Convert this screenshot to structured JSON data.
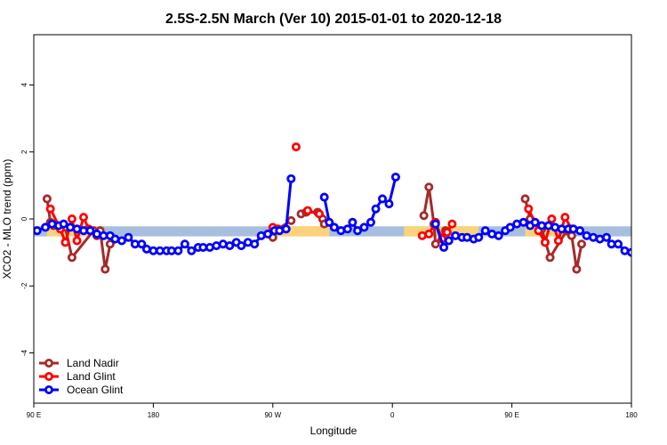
{
  "chart_data": {
    "type": "line",
    "title": "2.5S-2.5N March (Ver 10)   2015-01-01 to 2020-12-18",
    "xlabel": "Longitude",
    "ylabel": "XCO2 - MLO trend (ppm)",
    "xlim": [
      0,
      360
    ],
    "ylim": [
      -5.5,
      5.5
    ],
    "x_ticks": [
      {
        "value": 0,
        "label": "90 E"
      },
      {
        "value": 72,
        "label": "180"
      },
      {
        "value": 144,
        "label": "90 W"
      },
      {
        "value": 216,
        "label": "0"
      },
      {
        "value": 288,
        "label": "90 E"
      },
      {
        "value": 360,
        "label": "180"
      }
    ],
    "y_ticks": [
      {
        "value": -4,
        "label": "-4"
      },
      {
        "value": -2,
        "label": "-2"
      },
      {
        "value": 0,
        "label": "0"
      },
      {
        "value": 2,
        "label": "2"
      },
      {
        "value": 4,
        "label": "4"
      }
    ],
    "band": {
      "y_low": -0.52,
      "y_high": -0.22,
      "color": "#a8bedf",
      "land_color": "#fdd27a",
      "land_segments": [
        [
          8,
          38
        ],
        [
          144,
          178
        ],
        [
          223,
          268
        ],
        [
          296,
          324
        ]
      ]
    },
    "series": [
      {
        "name": "Land Nadir",
        "color": "#a52a2a",
        "segments": [
          [
            [
              8,
              0.6
            ],
            [
              10,
              -0.1
            ],
            [
              12,
              -0.2
            ],
            [
              19,
              -0.25
            ],
            [
              23,
              -1.15
            ],
            [
              36,
              -0.35
            ],
            [
              38,
              -0.5
            ],
            [
              40,
              -0.35
            ],
            [
              43,
              -1.5
            ],
            [
              46,
              -0.75
            ]
          ],
          [
            [
              144,
              -0.55
            ],
            [
              147,
              -0.3
            ],
            [
              155,
              -0.05
            ]
          ],
          [
            [
              161,
              0.15
            ],
            [
              164,
              0.2
            ],
            [
              171,
              0.2
            ],
            [
              174,
              0.0
            ],
            [
              175,
              -0.15
            ]
          ],
          [
            [
              235,
              0.1
            ],
            [
              238,
              0.95
            ],
            [
              241,
              -0.15
            ],
            [
              242,
              -0.75
            ],
            [
              248,
              -0.35
            ]
          ],
          [
            [
              296,
              0.6
            ],
            [
              299,
              0.0
            ],
            [
              306,
              -0.3
            ],
            [
              311,
              -1.15
            ],
            [
              321,
              -0.35
            ],
            [
              323,
              -0.4
            ],
            [
              324,
              -0.5
            ],
            [
              327,
              -1.5
            ],
            [
              330,
              -0.75
            ]
          ]
        ]
      },
      {
        "name": "Land Glint",
        "color": "#ff0000",
        "segments": [
          [
            [
              10,
              0.3
            ],
            [
              16,
              -0.3
            ],
            [
              19,
              -0.7
            ],
            [
              23,
              0.0
            ],
            [
              26,
              -0.65
            ],
            [
              30,
              0.05
            ],
            [
              33,
              -0.3
            ]
          ],
          [
            [
              144,
              -0.25
            ],
            [
              147,
              -0.3
            ]
          ],
          [
            [
              158,
              2.15
            ]
          ],
          [
            [
              165,
              0.25
            ],
            [
              172,
              0.15
            ]
          ],
          [
            [
              234,
              -0.5
            ],
            [
              238,
              -0.45
            ],
            [
              242,
              -0.1
            ],
            [
              246,
              -0.6
            ],
            [
              249,
              -0.4
            ],
            [
              252,
              -0.15
            ]
          ],
          [
            [
              298,
              0.3
            ],
            [
              304,
              -0.35
            ],
            [
              308,
              -0.7
            ],
            [
              312,
              0.0
            ],
            [
              316,
              -0.65
            ],
            [
              320,
              0.05
            ],
            [
              324,
              -0.3
            ]
          ]
        ]
      },
      {
        "name": "Ocean Glint",
        "color": "#0000ff",
        "segments": [
          [
            [
              2,
              -0.35
            ],
            [
              7,
              -0.25
            ],
            [
              11,
              -0.15
            ],
            [
              15,
              -0.2
            ],
            [
              18,
              -0.15
            ],
            [
              22,
              -0.25
            ],
            [
              26,
              -0.3
            ],
            [
              30,
              -0.35
            ],
            [
              34,
              -0.35
            ],
            [
              38,
              -0.45
            ],
            [
              42,
              -0.5
            ],
            [
              46,
              -0.5
            ],
            [
              49,
              -0.6
            ],
            [
              53,
              -0.65
            ],
            [
              57,
              -0.55
            ],
            [
              61,
              -0.75
            ],
            [
              65,
              -0.75
            ],
            [
              68,
              -0.9
            ],
            [
              72,
              -0.95
            ],
            [
              76,
              -0.95
            ],
            [
              80,
              -0.95
            ],
            [
              83,
              -0.95
            ],
            [
              87,
              -0.95
            ],
            [
              91,
              -0.75
            ],
            [
              95,
              -0.95
            ],
            [
              99,
              -0.85
            ],
            [
              102,
              -0.85
            ],
            [
              106,
              -0.85
            ],
            [
              110,
              -0.8
            ],
            [
              114,
              -0.75
            ],
            [
              118,
              -0.8
            ],
            [
              122,
              -0.7
            ],
            [
              125,
              -0.8
            ],
            [
              129,
              -0.7
            ],
            [
              133,
              -0.75
            ],
            [
              137,
              -0.5
            ],
            [
              141,
              -0.45
            ],
            [
              145,
              -0.35
            ],
            [
              148,
              -0.35
            ],
            [
              152,
              -0.3
            ],
            [
              155,
              1.2
            ]
          ],
          [
            [
              175,
              0.65
            ],
            [
              178,
              -0.1
            ],
            [
              181,
              -0.25
            ],
            [
              185,
              -0.35
            ],
            [
              189,
              -0.3
            ],
            [
              192,
              -0.1
            ],
            [
              195,
              -0.35
            ],
            [
              199,
              -0.25
            ],
            [
              203,
              -0.1
            ],
            [
              206,
              0.3
            ],
            [
              210,
              0.6
            ],
            [
              214,
              0.45
            ],
            [
              218,
              1.25
            ]
          ],
          [
            [
              242,
              -0.15
            ],
            [
              247,
              -0.85
            ],
            [
              250,
              -0.65
            ],
            [
              254,
              -0.5
            ],
            [
              258,
              -0.55
            ],
            [
              261,
              -0.55
            ],
            [
              265,
              -0.6
            ],
            [
              268,
              -0.55
            ],
            [
              272,
              -0.35
            ],
            [
              276,
              -0.45
            ],
            [
              280,
              -0.5
            ],
            [
              284,
              -0.35
            ],
            [
              287,
              -0.25
            ],
            [
              291,
              -0.15
            ],
            [
              295,
              -0.1
            ],
            [
              299,
              -0.2
            ],
            [
              302,
              -0.1
            ],
            [
              306,
              -0.2
            ],
            [
              310,
              -0.2
            ],
            [
              314,
              -0.25
            ],
            [
              318,
              -0.3
            ],
            [
              322,
              -0.3
            ],
            [
              325,
              -0.3
            ],
            [
              329,
              -0.35
            ],
            [
              333,
              -0.5
            ],
            [
              337,
              -0.55
            ],
            [
              341,
              -0.6
            ],
            [
              345,
              -0.55
            ],
            [
              348,
              -0.75
            ],
            [
              352,
              -0.75
            ],
            [
              356,
              -0.95
            ],
            [
              360,
              -1.0
            ]
          ]
        ]
      }
    ],
    "legend": {
      "placement": "bottom-left",
      "entries": [
        "Land Nadir",
        "Land Glint",
        "Ocean Glint"
      ]
    }
  }
}
